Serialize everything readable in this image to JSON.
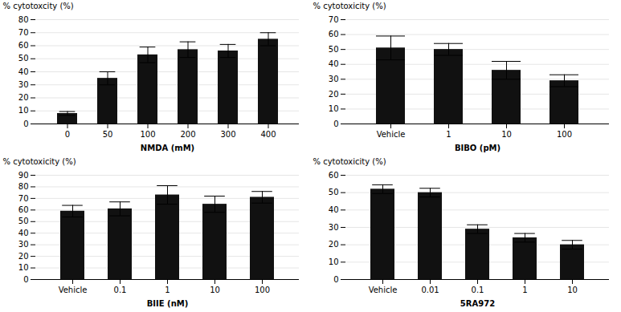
{
  "chart_data": [
    {
      "type": "bar",
      "xlabel": "NMDA (mM)",
      "ylabel": "% cytotoxcity (%)",
      "categories": [
        "0",
        "50",
        "100",
        "200",
        "300",
        "400"
      ],
      "values": [
        8,
        35,
        53,
        57,
        56,
        65
      ],
      "errors": [
        1.5,
        5,
        6,
        6,
        5,
        5
      ],
      "ylim": [
        0,
        80
      ],
      "yticks": [
        0,
        10,
        20,
        30,
        40,
        50,
        60,
        70,
        80
      ],
      "grid": true,
      "color": "#111111"
    },
    {
      "type": "bar",
      "xlabel": "BIBO (pM)",
      "ylabel": "% cytotoxicity (%)",
      "categories": [
        "Vehicle",
        "1",
        "10",
        "100"
      ],
      "values": [
        51,
        50,
        36,
        29
      ],
      "errors": [
        8,
        4,
        6,
        4
      ],
      "ylim": [
        0,
        70
      ],
      "yticks": [
        0,
        10,
        20,
        30,
        40,
        50,
        60,
        70
      ],
      "grid": true,
      "color": "#111111"
    },
    {
      "type": "bar",
      "xlabel": "BIIE (nM)",
      "ylabel": "% cytotoxicity (%)",
      "categories": [
        "Vehicle",
        "0.1",
        "1",
        "10",
        "100"
      ],
      "values": [
        59,
        61,
        73,
        65,
        71
      ],
      "errors": [
        5,
        6,
        8,
        7,
        5
      ],
      "ylim": [
        0,
        90
      ],
      "yticks": [
        0,
        10,
        20,
        30,
        40,
        50,
        60,
        70,
        80,
        90
      ],
      "grid": true,
      "color": "#111111"
    },
    {
      "type": "bar",
      "xlabel": "5RA972",
      "ylabel": "% cytotoxicity (%)",
      "categories": [
        "Vehicle",
        "0.01",
        "0.1",
        "1",
        "10"
      ],
      "values": [
        52,
        50,
        29,
        24,
        20
      ],
      "errors": [
        2.5,
        2.5,
        2.5,
        2.5,
        2.5
      ],
      "ylim": [
        0,
        60
      ],
      "yticks": [
        0,
        10,
        20,
        30,
        40,
        50,
        60
      ],
      "grid": true,
      "color": "#111111"
    }
  ]
}
